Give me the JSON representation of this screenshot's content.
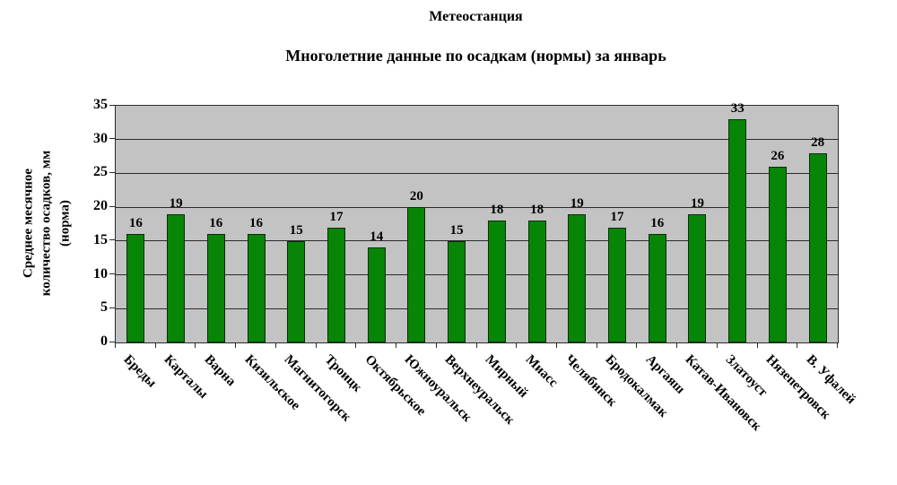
{
  "chart_data": {
    "type": "bar",
    "title": "Метеостанция",
    "subtitle": "Многолетние данные по осадкам (нормы) за январь",
    "ylabel_lines": [
      "Среднее месячное",
      "количество осадков, мм",
      "(норма)"
    ],
    "categories": [
      "Бреды",
      "Карталы",
      "Варна",
      "Кизильское",
      "Магнитогорск",
      "Троицк",
      "Октябрьское",
      "Южноуральск",
      "Верхнеуральск",
      "Мирный",
      "Миасс",
      "Челябинск",
      "Бродокалмак",
      "Аргаяш",
      "Катав-Ивановск",
      "Златоуст",
      "Нязепетровск",
      "В. Уфалей"
    ],
    "values": [
      16,
      19,
      16,
      16,
      15,
      17,
      14,
      20,
      15,
      18,
      18,
      19,
      17,
      16,
      19,
      33,
      26,
      28
    ],
    "ylim": [
      0,
      35
    ],
    "yticks": [
      0,
      5,
      10,
      15,
      20,
      25,
      30,
      35
    ],
    "grid": true,
    "legend": "none",
    "colors": {
      "bar_fill": "#078507",
      "bar_border": "#0d2b0d",
      "plot_bg": "#c3c3c3",
      "gridline": "#2b2b2b",
      "axis": "#2b2b2b",
      "text": "#000000",
      "page_bg": "#ffffff"
    }
  }
}
